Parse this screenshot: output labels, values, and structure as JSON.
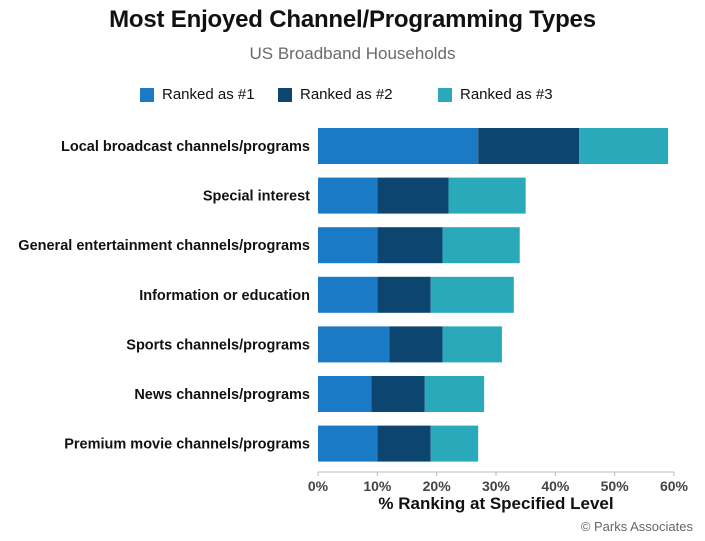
{
  "chart_data": {
    "type": "bar",
    "orientation": "horizontal",
    "stacked": true,
    "title": "Most Enjoyed Channel/Programming Types",
    "subtitle": "US Broadband Households",
    "xlabel": "% Ranking at Specified Level",
    "ylabel": "",
    "xlim": [
      0,
      60
    ],
    "x_ticks": [
      "0%",
      "10%",
      "20%",
      "30%",
      "40%",
      "50%",
      "60%"
    ],
    "legend_position": "top",
    "grid": false,
    "categories": [
      "Local broadcast channels/programs",
      "Special interest",
      "General entertainment channels/programs",
      "Information or education",
      "Sports channels/programs",
      "News channels/programs",
      "Premium movie channels/programs"
    ],
    "series": [
      {
        "name": "Ranked as #1",
        "color": "#1a7ac6",
        "values": [
          27,
          10,
          10,
          10,
          12,
          9,
          10
        ]
      },
      {
        "name": "Ranked as #2",
        "color": "#0c4670",
        "values": [
          17,
          12,
          11,
          9,
          9,
          9,
          9
        ]
      },
      {
        "name": "Ranked as #3",
        "color": "#2aa9ba",
        "values": [
          15,
          13,
          13,
          14,
          10,
          10,
          8
        ]
      }
    ]
  },
  "footer": {
    "source": "© Parks Associates"
  }
}
